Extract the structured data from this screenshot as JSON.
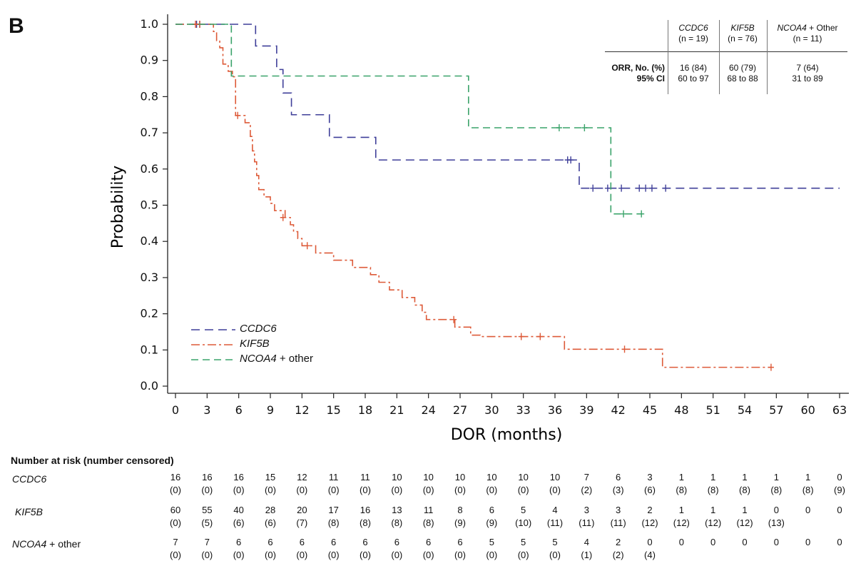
{
  "panel_letter": "B",
  "chart_data": {
    "type": "line",
    "subtype": "kaplan-meier step curves",
    "xlabel": "DOR (months)",
    "ylabel": "Probability",
    "xlim": [
      0,
      63
    ],
    "ylim": [
      0,
      1
    ],
    "x_ticks": [
      "0",
      "3",
      "6",
      "9",
      "12",
      "15",
      "18",
      "21",
      "24",
      "27",
      "30",
      "33",
      "36",
      "39",
      "42",
      "45",
      "48",
      "51",
      "54",
      "57",
      "60",
      "63"
    ],
    "y_ticks": [
      "0.0",
      "0.1",
      "0.2",
      "0.3",
      "0.4",
      "0.5",
      "0.6",
      "0.7",
      "0.8",
      "0.9",
      "1.0"
    ],
    "legend_position": "lower-left",
    "series": [
      {
        "name": "CCDC6",
        "color": "#3f3f99",
        "dash": "12,7",
        "steps": [
          [
            0,
            1.0
          ],
          [
            7.6,
            0.94
          ],
          [
            9.6,
            0.875
          ],
          [
            10.2,
            0.81
          ],
          [
            11.0,
            0.75
          ],
          [
            14.6,
            0.6875
          ],
          [
            19.0,
            0.625
          ],
          [
            38.3,
            0.547
          ],
          [
            63,
            0.547
          ]
        ],
        "censor": [
          [
            2.0,
            1.0
          ],
          [
            2.3,
            1.0
          ],
          [
            37.2,
            0.625
          ],
          [
            37.5,
            0.625
          ],
          [
            39.6,
            0.547
          ],
          [
            41.0,
            0.547
          ],
          [
            42.3,
            0.547
          ],
          [
            44.0,
            0.547
          ],
          [
            44.6,
            0.547
          ],
          [
            45.2,
            0.547
          ],
          [
            46.5,
            0.547
          ]
        ]
      },
      {
        "name": "KIF5B",
        "color": "#dd5a38",
        "dash": "12,4,3,4",
        "steps": [
          [
            0,
            1.0
          ],
          [
            3.6,
            0.98
          ],
          [
            3.9,
            0.955
          ],
          [
            4.2,
            0.935
          ],
          [
            4.5,
            0.89
          ],
          [
            5.0,
            0.87
          ],
          [
            5.4,
            0.855
          ],
          [
            5.7,
            0.748
          ],
          [
            6.6,
            0.728
          ],
          [
            7.1,
            0.69
          ],
          [
            7.3,
            0.65
          ],
          [
            7.5,
            0.62
          ],
          [
            7.7,
            0.582
          ],
          [
            7.9,
            0.543
          ],
          [
            8.4,
            0.523
          ],
          [
            9.0,
            0.505
          ],
          [
            9.4,
            0.485
          ],
          [
            10.4,
            0.466
          ],
          [
            10.9,
            0.446
          ],
          [
            11.2,
            0.427
          ],
          [
            11.6,
            0.408
          ],
          [
            12.0,
            0.388
          ],
          [
            13.3,
            0.368
          ],
          [
            15.0,
            0.348
          ],
          [
            16.8,
            0.328
          ],
          [
            18.5,
            0.308
          ],
          [
            19.3,
            0.287
          ],
          [
            20.3,
            0.266
          ],
          [
            21.5,
            0.245
          ],
          [
            22.7,
            0.224
          ],
          [
            23.4,
            0.204
          ],
          [
            23.8,
            0.184
          ],
          [
            26.5,
            0.163
          ],
          [
            28.0,
            0.141
          ],
          [
            28.9,
            0.137
          ],
          [
            36.9,
            0.102
          ],
          [
            46.2,
            0.052
          ],
          [
            56.5,
            0.052
          ]
        ],
        "censor": [
          [
            1.9,
            1.0
          ],
          [
            2.3,
            1.0
          ],
          [
            5.9,
            0.748
          ],
          [
            10.2,
            0.466
          ],
          [
            12.5,
            0.388
          ],
          [
            26.4,
            0.184
          ],
          [
            32.8,
            0.137
          ],
          [
            34.6,
            0.137
          ],
          [
            42.6,
            0.102
          ],
          [
            56.5,
            0.052
          ]
        ]
      },
      {
        "name": "NCOA4 + other",
        "color": "#3aa36a",
        "dash": "10,6",
        "steps": [
          [
            0,
            1.0
          ],
          [
            5.3,
            0.857
          ],
          [
            27.8,
            0.714
          ],
          [
            41.3,
            0.476
          ],
          [
            44.3,
            0.476
          ]
        ],
        "censor": [
          [
            36.4,
            0.714
          ],
          [
            38.8,
            0.714
          ],
          [
            42.5,
            0.476
          ],
          [
            44.2,
            0.476
          ]
        ]
      }
    ],
    "legend": [
      {
        "label_italic": "CCDC6",
        "label_rest": ""
      },
      {
        "label_italic": "KIF5B",
        "label_rest": ""
      },
      {
        "label_italic": "NCOA4",
        "label_rest": " + other"
      }
    ]
  },
  "stats_table": {
    "columns": [
      {
        "name": "CCDC6",
        "name_rest": "",
        "n": "(n = 19)",
        "orr": "16 (84)",
        "ci": "60 to 97"
      },
      {
        "name": "KIF5B",
        "name_rest": "",
        "n": "(n = 76)",
        "orr": "60 (79)",
        "ci": "68 to 88"
      },
      {
        "name": "NCOA4",
        "name_rest": " + Other",
        "n": "(n = 11)",
        "orr": "7 (64)",
        "ci": "31 to 89"
      }
    ],
    "row_labels": {
      "orr": "ORR, No. (%)",
      "ci": "95% CI"
    }
  },
  "risk_table": {
    "heading": "Number at risk (number censored)",
    "rows": [
      {
        "label_italic": "CCDC6",
        "label_rest": "",
        "at_risk": [
          "16",
          "16",
          "16",
          "15",
          "12",
          "11",
          "11",
          "10",
          "10",
          "10",
          "10",
          "10",
          "10",
          "7",
          "6",
          "3",
          "1",
          "1",
          "1",
          "1",
          "1",
          "0"
        ],
        "censored": [
          "(0)",
          "(0)",
          "(0)",
          "(0)",
          "(0)",
          "(0)",
          "(0)",
          "(0)",
          "(0)",
          "(0)",
          "(0)",
          "(0)",
          "(0)",
          "(2)",
          "(3)",
          "(6)",
          "(8)",
          "(8)",
          "(8)",
          "(8)",
          "(8)",
          "(9)"
        ]
      },
      {
        "label_italic": "KIF5B",
        "label_rest": "",
        "at_risk": [
          "60",
          "55",
          "40",
          "28",
          "20",
          "17",
          "16",
          "13",
          "11",
          "8",
          "6",
          "5",
          "4",
          "3",
          "3",
          "2",
          "1",
          "1",
          "1",
          "0",
          "0",
          "0"
        ],
        "censored": [
          "(0)",
          "(5)",
          "(6)",
          "(6)",
          "(7)",
          "(8)",
          "(8)",
          "(8)",
          "(8)",
          "(9)",
          "(9)",
          "(10)",
          "(11)",
          "(11)",
          "(11)",
          "(12)",
          "(12)",
          "(12)",
          "(12)",
          "(13)",
          "",
          ""
        ]
      },
      {
        "label_italic": "NCOA4",
        "label_rest": " + other",
        "at_risk": [
          "7",
          "7",
          "6",
          "6",
          "6",
          "6",
          "6",
          "6",
          "6",
          "6",
          "5",
          "5",
          "5",
          "4",
          "2",
          "0",
          "0",
          "0",
          "0",
          "0",
          "0",
          "0"
        ],
        "censored": [
          "(0)",
          "(0)",
          "(0)",
          "(0)",
          "(0)",
          "(0)",
          "(0)",
          "(0)",
          "(0)",
          "(0)",
          "(0)",
          "(0)",
          "(0)",
          "(1)",
          "(2)",
          "(4)",
          "",
          "",
          "",
          "",
          "",
          ""
        ]
      }
    ]
  }
}
